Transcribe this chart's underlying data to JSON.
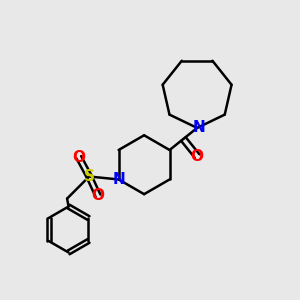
{
  "bg_color": "#e8e8e8",
  "bond_color": "#000000",
  "N_color": "#0000ff",
  "O_color": "#ff0000",
  "S_color": "#cccc00",
  "line_width": 1.8,
  "figsize": [
    3.0,
    3.0
  ],
  "dpi": 100,
  "xlim": [
    0,
    10
  ],
  "ylim": [
    0,
    10
  ]
}
